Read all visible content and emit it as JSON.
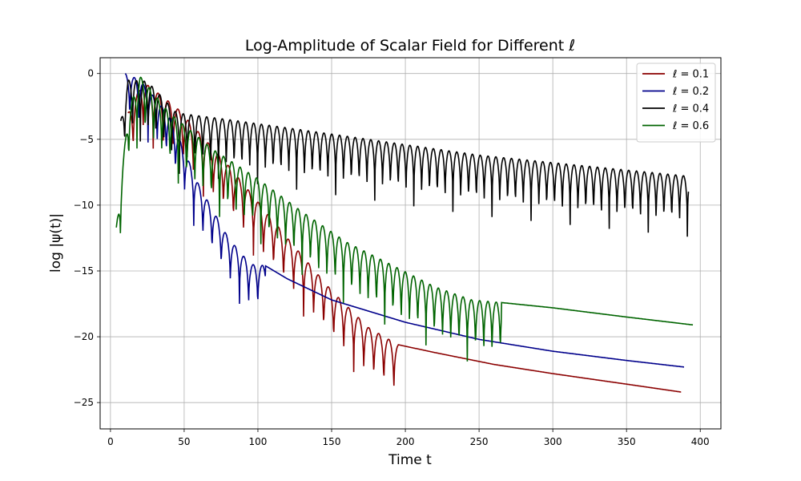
{
  "chart_data": {
    "type": "line",
    "title": "Log-Amplitude of Scalar Field for Different ℓ",
    "xlabel": "Time t",
    "ylabel": "log |ψ(t)|",
    "xlim": [
      -7,
      414
    ],
    "ylim": [
      -27.0,
      1.2
    ],
    "xticks": [
      0,
      50,
      100,
      150,
      200,
      250,
      300,
      350,
      400
    ],
    "yticks": [
      0,
      -5,
      -10,
      -15,
      -20,
      -25
    ],
    "grid": true,
    "legend_position": "top-right",
    "series": [
      {
        "name": "ℓ = 0.1",
        "color": "#8b0000",
        "profile": {
          "t_start": 12,
          "t_end": 387,
          "osc_until": 195,
          "period": 6.8,
          "peaks": [
            [
              12,
              -3.0
            ],
            [
              22,
              -0.6
            ],
            [
              45,
              -2.6
            ],
            [
              80,
              -7.0
            ],
            [
              120,
              -12.5
            ],
            [
              150,
              -16.5
            ],
            [
              175,
              -19.3
            ],
            [
              195,
              -20.6
            ]
          ],
          "dip": 4.5,
          "tail": [
            [
              195,
              -20.6
            ],
            [
              220,
              -21.2
            ],
            [
              260,
              -22.1
            ],
            [
              300,
              -22.8
            ],
            [
              350,
              -23.6
            ],
            [
              387,
              -24.2
            ]
          ]
        }
      },
      {
        "name": "ℓ = 0.2",
        "color": "#00008b",
        "profile": {
          "t_start": 10,
          "t_end": 389,
          "osc_until": 105,
          "period": 6.2,
          "peaks": [
            [
              10,
              0.0
            ],
            [
              20,
              -0.5
            ],
            [
              40,
              -3.2
            ],
            [
              60,
              -8.5
            ],
            [
              80,
              -12.5
            ],
            [
              95,
              -14.5
            ],
            [
              105,
              -14.6
            ]
          ],
          "dip": 4.0,
          "tail": [
            [
              105,
              -14.6
            ],
            [
              120,
              -15.6
            ],
            [
              150,
              -17.2
            ],
            [
              200,
              -18.9
            ],
            [
              250,
              -20.2
            ],
            [
              300,
              -21.1
            ],
            [
              350,
              -21.8
            ],
            [
              389,
              -22.3
            ]
          ]
        }
      },
      {
        "name": "ℓ = 0.4",
        "color": "#000000",
        "profile": {
          "t_start": 7,
          "t_end": 392,
          "osc_until": 392,
          "period": 5.3,
          "peaks": [
            [
              7,
              -3.6
            ],
            [
              12,
              -0.5
            ],
            [
              25,
              -0.6
            ],
            [
              45,
              -3.0
            ],
            [
              80,
              -3.5
            ],
            [
              150,
              -4.6
            ],
            [
              250,
              -6.2
            ],
            [
              320,
              -7.0
            ],
            [
              392,
              -7.8
            ]
          ],
          "dip": 4.6,
          "tail": []
        }
      },
      {
        "name": "ℓ = 0.6",
        "color": "#006400",
        "profile": {
          "t_start": 4,
          "t_end": 395,
          "osc_until": 265,
          "period": 5.6,
          "peaks": [
            [
              4,
              -11.7
            ],
            [
              12,
              -3.0
            ],
            [
              20,
              -0.2
            ],
            [
              40,
              -3.0
            ],
            [
              70,
              -5.8
            ],
            [
              100,
              -8.0
            ],
            [
              130,
              -10.5
            ],
            [
              160,
              -12.8
            ],
            [
              190,
              -14.5
            ],
            [
              220,
              -16.2
            ],
            [
              245,
              -17.2
            ],
            [
              265,
              -17.4
            ]
          ],
          "dip": 4.8,
          "tail": [
            [
              265,
              -17.4
            ],
            [
              300,
              -17.8
            ],
            [
              350,
              -18.5
            ],
            [
              395,
              -19.1
            ]
          ]
        }
      }
    ]
  }
}
